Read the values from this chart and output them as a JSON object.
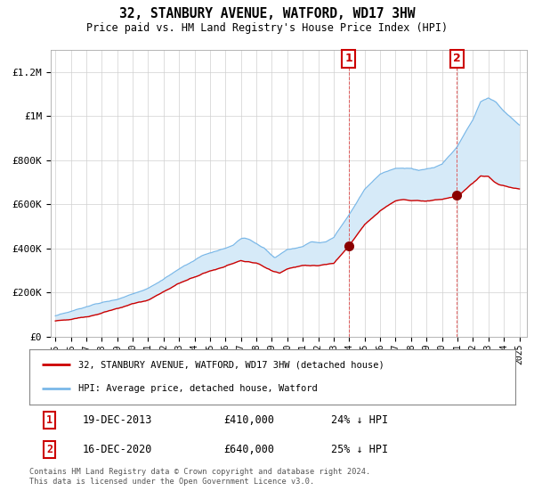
{
  "title": "32, STANBURY AVENUE, WATFORD, WD17 3HW",
  "subtitle": "Price paid vs. HM Land Registry's House Price Index (HPI)",
  "ylabel_ticks": [
    "£0",
    "£200K",
    "£400K",
    "£600K",
    "£800K",
    "£1M",
    "£1.2M"
  ],
  "ytick_values": [
    0,
    200000,
    400000,
    600000,
    800000,
    1000000,
    1200000
  ],
  "ylim": [
    0,
    1300000
  ],
  "xlim_start": 1994.7,
  "xlim_end": 2025.5,
  "hpi_color": "#7ab8e8",
  "hpi_fill_color": "#d6eaf8",
  "price_color": "#cc0000",
  "bg_chart": "#ffffff",
  "bg_figure": "#ffffff",
  "point1_x": 2013.97,
  "point1_y": 410000,
  "point2_x": 2020.97,
  "point2_y": 640000,
  "legend_label_red": "32, STANBURY AVENUE, WATFORD, WD17 3HW (detached house)",
  "legend_label_blue": "HPI: Average price, detached house, Watford",
  "footnote": "Contains HM Land Registry data © Crown copyright and database right 2024.\nThis data is licensed under the Open Government Licence v3.0.",
  "grid_color": "#d0d0d0",
  "vline1_x": 2013.97,
  "vline2_x": 2020.97
}
